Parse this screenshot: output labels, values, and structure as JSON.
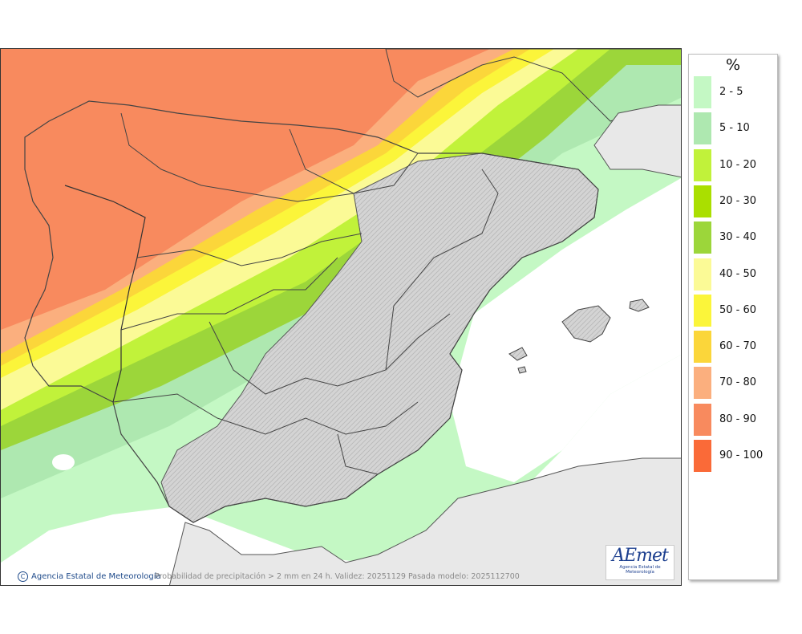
{
  "map": {
    "units": "%",
    "caption": "Probabilidad de precipitación > 2 mm en 24 h. Validez: 20251129 Pasada modelo: 2025112700",
    "credit": "Agencia Estatal de Meteorología",
    "logo_word": "AEmet",
    "logo_sub": "Agencia Estatal de Meteorología",
    "legend": [
      {
        "label": "2 - 5",
        "color": "#c4f8c4"
      },
      {
        "label": "5 - 10",
        "color": "#aee8b0"
      },
      {
        "label": "10 - 20",
        "color": "#c1f23a"
      },
      {
        "label": "20 - 30",
        "color": "#aadf00"
      },
      {
        "label": "30 - 40",
        "color": "#9cd63a"
      },
      {
        "label": "40 - 50",
        "color": "#fbfa96"
      },
      {
        "label": "50 - 60",
        "color": "#fbf53a"
      },
      {
        "label": "60 - 70",
        "color": "#fbd63a"
      },
      {
        "label": "70 - 80",
        "color": "#fbaf7e"
      },
      {
        "label": "80 - 90",
        "color": "#f88a5e"
      },
      {
        "label": "90 - 100",
        "color": "#fa6a38"
      }
    ],
    "colors": {
      "land_background": "#dcdcdc",
      "foreign_land": "#e8e8e8",
      "sea": "#ffffff"
    }
  }
}
